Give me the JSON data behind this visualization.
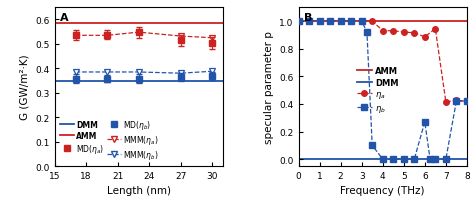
{
  "panel_a": {
    "lengths": [
      17,
      20,
      23,
      27,
      30
    ],
    "AMM_value": 0.585,
    "DMM_value": 0.348,
    "MD_eta_a": [
      0.535,
      0.537,
      0.548,
      0.515,
      0.505
    ],
    "MD_eta_a_err": [
      0.02,
      0.018,
      0.022,
      0.022,
      0.025
    ],
    "MD_eta_b": [
      0.358,
      0.358,
      0.358,
      0.363,
      0.368
    ],
    "MD_eta_b_err": [
      0.018,
      0.016,
      0.018,
      0.016,
      0.016
    ],
    "MMM_eta_a": [
      0.535,
      0.535,
      0.548,
      0.532,
      0.525
    ],
    "MMM_eta_b": [
      0.385,
      0.385,
      0.385,
      0.38,
      0.388
    ],
    "xlabel": "Length (nm)",
    "ylabel": "G (GW/m²·K)",
    "ylim": [
      0.0,
      0.65
    ],
    "xlim": [
      15,
      31
    ],
    "xticks": [
      15,
      18,
      21,
      24,
      27,
      30
    ],
    "yticks": [
      0.0,
      0.1,
      0.2,
      0.3,
      0.4,
      0.5,
      0.6
    ],
    "label": "A"
  },
  "panel_b": {
    "freq_eta_a": [
      0.0,
      0.5,
      1.0,
      1.5,
      2.0,
      2.5,
      3.0,
      3.5,
      4.0,
      4.5,
      5.0,
      5.5,
      6.0,
      6.5,
      7.0,
      7.5,
      8.0
    ],
    "p_eta_a": [
      1.0,
      1.0,
      1.0,
      1.0,
      1.0,
      1.0,
      1.0,
      1.0,
      0.93,
      0.93,
      0.92,
      0.915,
      0.885,
      0.945,
      0.415,
      0.425,
      0.42
    ],
    "freq_eta_b": [
      0.0,
      0.5,
      1.0,
      1.5,
      2.0,
      2.5,
      3.0,
      3.25,
      3.5,
      4.0,
      4.5,
      5.0,
      5.5,
      6.0,
      6.25,
      6.5,
      7.0,
      7.5,
      8.0
    ],
    "p_eta_b": [
      1.0,
      1.0,
      1.0,
      1.0,
      1.0,
      1.0,
      1.0,
      0.92,
      0.1,
      0.0,
      0.0,
      0.0,
      0.0,
      0.27,
      0.0,
      0.0,
      0.0,
      0.42,
      0.42
    ],
    "AMM_value": 1.0,
    "DMM_value": 0.0,
    "xlabel": "Frequency (THz)",
    "ylabel": "specular parameter p",
    "ylim": [
      -0.05,
      1.1
    ],
    "xlim": [
      0,
      8
    ],
    "xticks": [
      0,
      1,
      2,
      3,
      4,
      5,
      6,
      7,
      8
    ],
    "yticks": [
      0.0,
      0.2,
      0.4,
      0.6,
      0.8,
      1.0
    ],
    "label": "B"
  },
  "colors": {
    "red": "#cc2222",
    "blue": "#2255aa",
    "AMM_line": "#cc2222",
    "DMM_line": "#2255aa"
  }
}
